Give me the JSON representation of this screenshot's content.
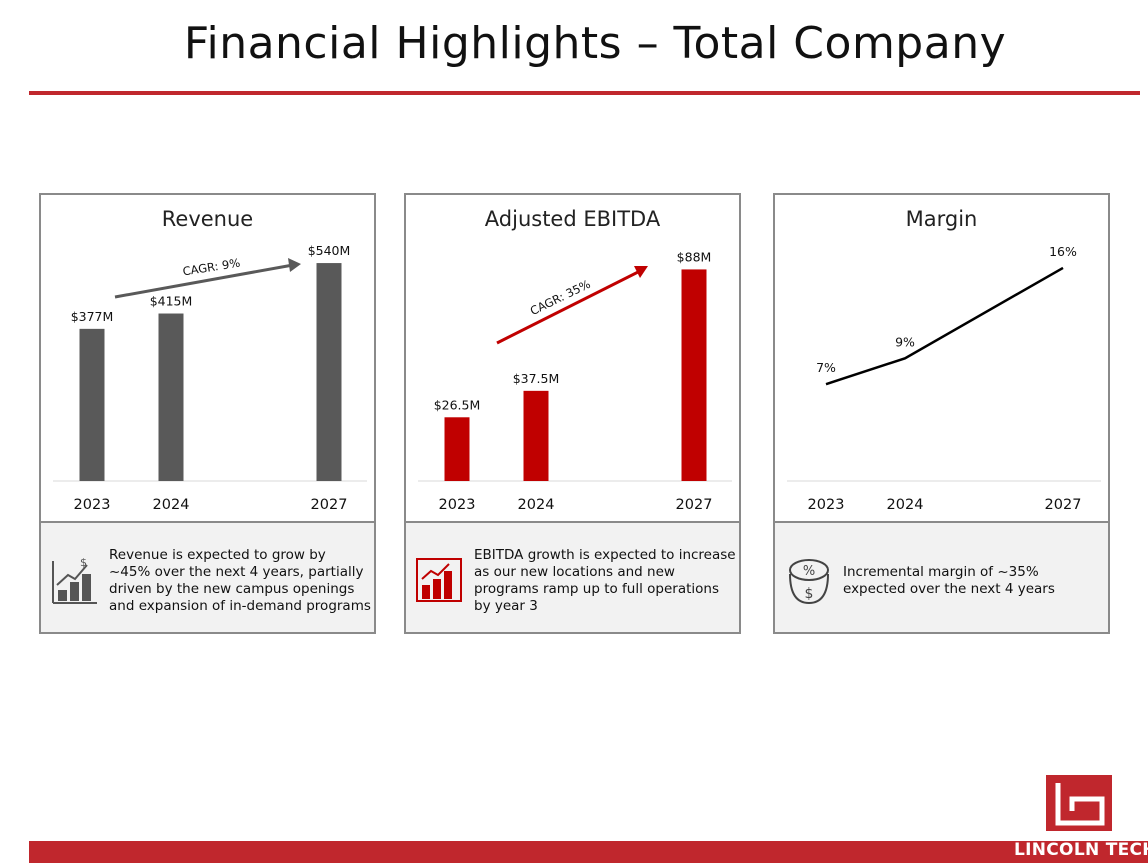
{
  "page": {
    "title": "Financial Highlights – Total Company",
    "brand": "LINCOLN TECH",
    "colors": {
      "accent": "#c0272d",
      "gray_bar": "#595959",
      "red_bar": "#c00000"
    }
  },
  "chart_data": [
    {
      "type": "bar",
      "title": "Revenue",
      "categories": [
        "2023",
        "2024",
        "2027"
      ],
      "values": [
        377,
        415,
        540
      ],
      "data_labels": [
        "$377M",
        "$415M",
        "$540M"
      ],
      "unit": "$M",
      "annotation": "CAGR: 9%",
      "ylim": [
        0,
        560
      ],
      "grid": false
    },
    {
      "type": "bar",
      "title": "Adjusted EBITDA",
      "categories": [
        "2023",
        "2024",
        "2027"
      ],
      "values": [
        26.5,
        37.5,
        88
      ],
      "data_labels": [
        "$26.5M",
        "$37.5M",
        "$88M"
      ],
      "unit": "$M",
      "annotation": "CAGR: 35%",
      "ylim": [
        0,
        94
      ],
      "grid": false
    },
    {
      "type": "line",
      "title": "Margin",
      "categories": [
        "2023",
        "2024",
        "2027"
      ],
      "values": [
        7,
        9,
        16
      ],
      "data_labels": [
        "7%",
        "9%",
        "16%"
      ],
      "unit": "%",
      "ylim": [
        -0.5,
        17
      ],
      "grid": false
    }
  ],
  "cards": [
    {
      "description": "Revenue is expected to grow by ~45% over the next 4 years, partially driven by the new campus openings and expansion of in-demand programs",
      "icon": "growth-chart-dollar-icon"
    },
    {
      "description": "EBITDA growth is expected to increase as our new locations and new programs ramp up to full operations by year 3",
      "icon": "growth-chart-icon"
    },
    {
      "description": "Incremental margin of ~35% expected over the next 4 years",
      "icon": "percent-dollar-coins-icon"
    }
  ]
}
